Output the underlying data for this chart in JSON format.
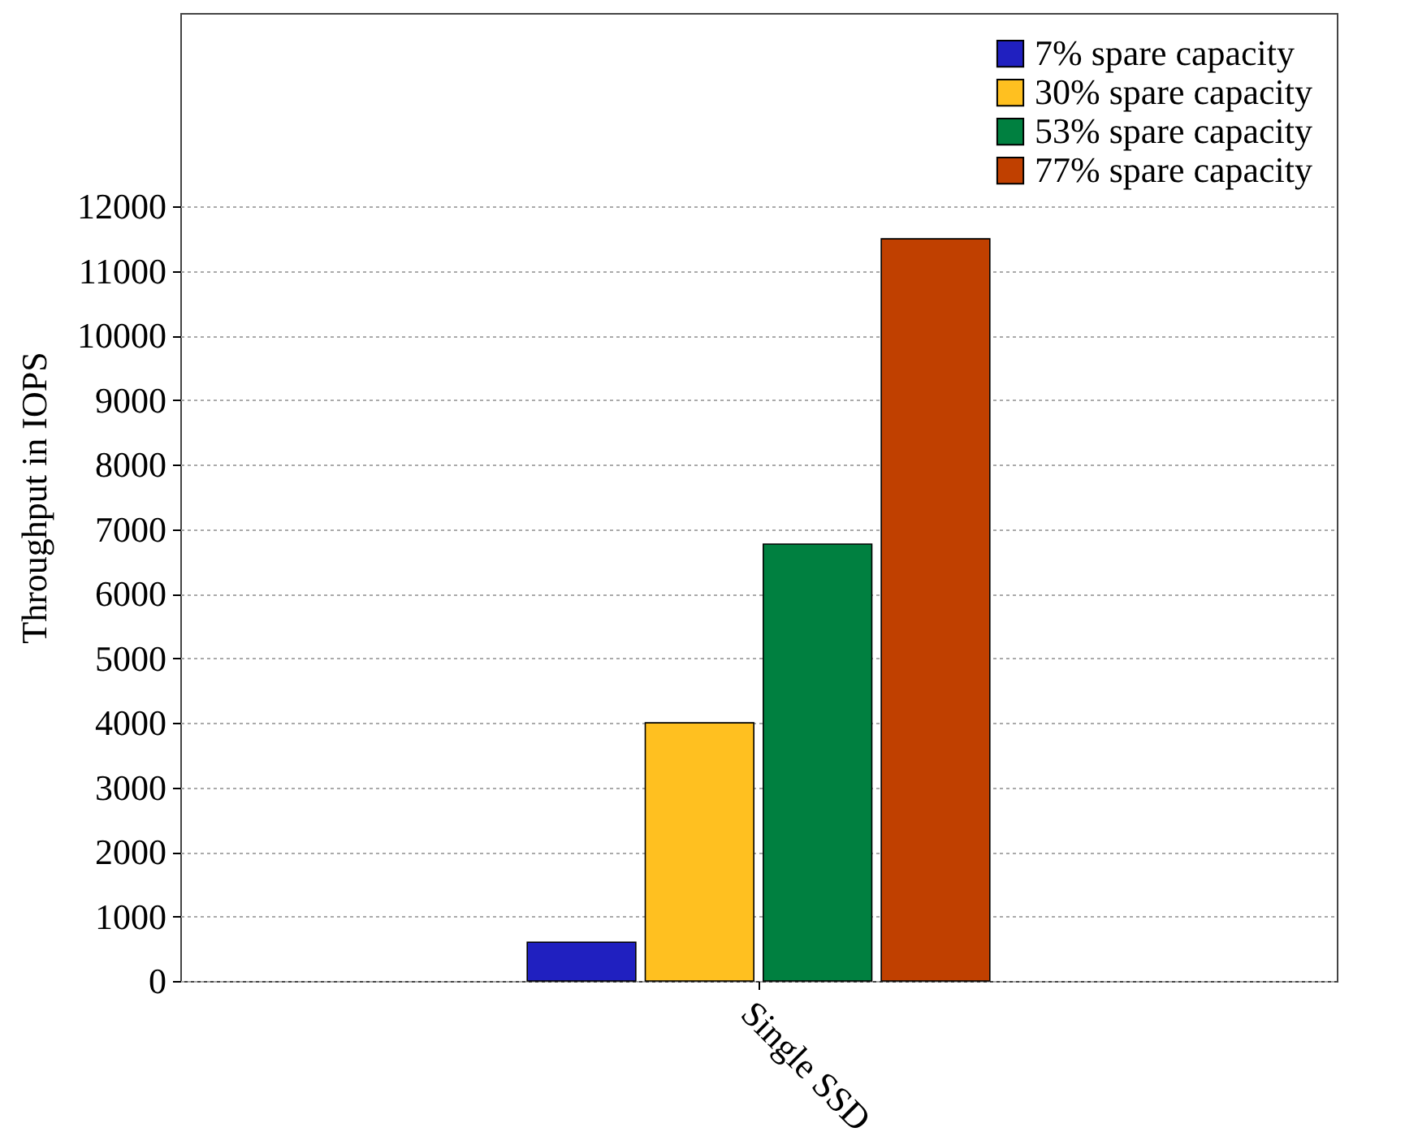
{
  "chart_data": {
    "type": "bar",
    "ylabel": "Throughput in IOPS",
    "categories": [
      "Single SSD"
    ],
    "series": [
      {
        "name": "7% spare capacity",
        "color": "#2020c0",
        "values": [
          600
        ]
      },
      {
        "name": "30% spare capacity",
        "color": "#ffc020",
        "values": [
          4000
        ]
      },
      {
        "name": "53% spare capacity",
        "color": "#008040",
        "values": [
          6770
        ]
      },
      {
        "name": "77% spare capacity",
        "color": "#c04000",
        "values": [
          11500
        ]
      }
    ],
    "ylim": [
      0,
      15000
    ],
    "yticks": [
      0,
      1000,
      2000,
      3000,
      4000,
      5000,
      6000,
      7000,
      8000,
      9000,
      10000,
      11000,
      12000
    ],
    "grid": "y",
    "legend": "top right"
  }
}
